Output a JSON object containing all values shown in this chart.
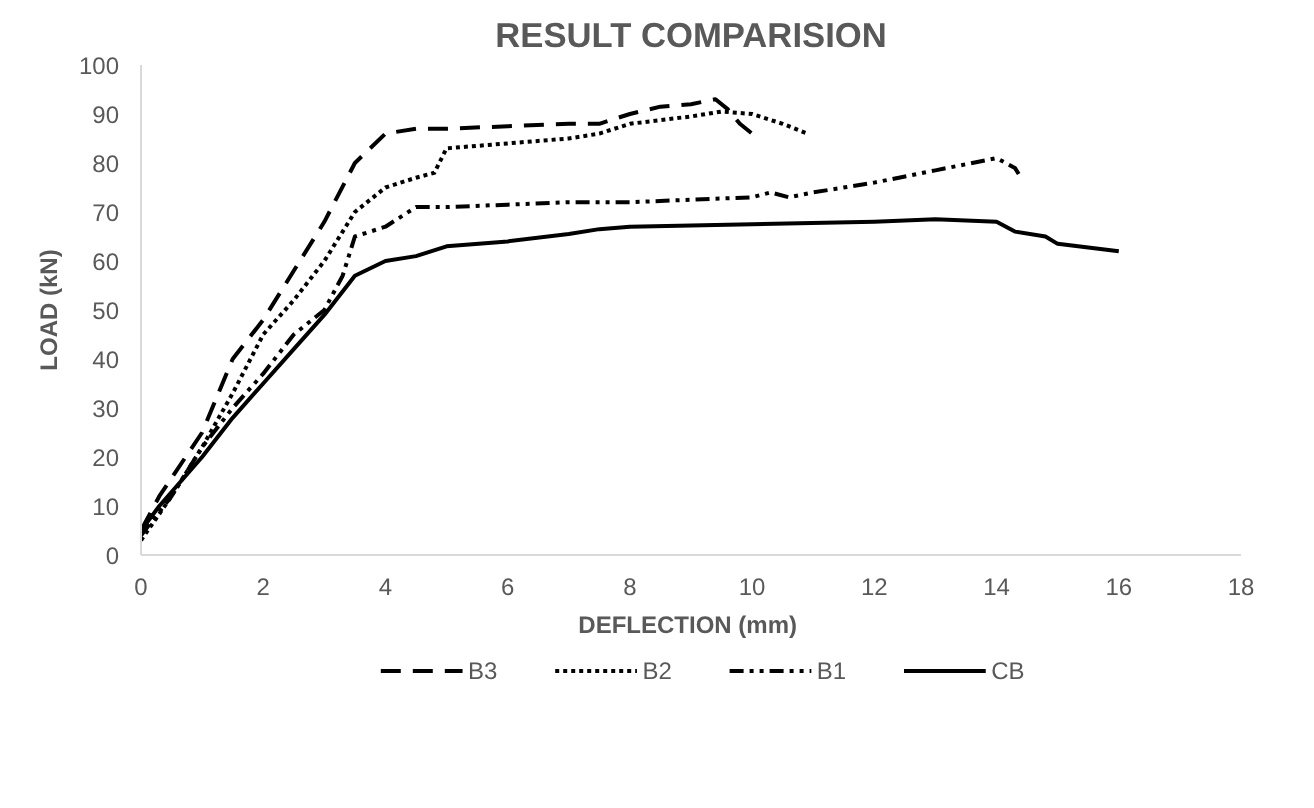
{
  "chart_data": {
    "type": "line",
    "title": "RESULT COMPARISION",
    "xlabel": "DEFLECTION  (mm)",
    "ylabel": "LOAD (kN)",
    "xlim": [
      0,
      18
    ],
    "xticks": [
      0,
      2,
      4,
      6,
      8,
      10,
      12,
      14,
      16,
      18
    ],
    "ylim": [
      0,
      100
    ],
    "yticks": [
      0,
      10,
      20,
      30,
      40,
      50,
      60,
      70,
      80,
      90,
      100
    ],
    "grid": false,
    "legend": "bottom",
    "series": [
      {
        "name": "B3",
        "color": "#000000",
        "line_style": "dashed",
        "x": [
          0,
          0.3,
          1,
          1.5,
          2,
          2.5,
          3,
          3.5,
          4,
          4.5,
          5,
          6,
          7,
          7.5,
          8,
          8.5,
          9,
          9.4,
          9.6,
          9.8,
          10
        ],
        "values": [
          5,
          12,
          25,
          40,
          48,
          58,
          68,
          80,
          86,
          87,
          87,
          87.5,
          88,
          88,
          90,
          91.5,
          92,
          93,
          91,
          88,
          86
        ]
      },
      {
        "name": "B2",
        "color": "#000000",
        "line_style": "dotted",
        "x": [
          0,
          0.5,
          1,
          1.5,
          2,
          2.5,
          3,
          3.5,
          4,
          4.5,
          4.8,
          5,
          6,
          7,
          7.5,
          8,
          9,
          9.5,
          10,
          10.5,
          10.9
        ],
        "values": [
          3,
          12,
          22,
          33,
          45,
          52,
          60,
          70,
          75,
          77,
          78,
          83,
          84,
          85,
          86,
          88,
          89.5,
          90.5,
          90,
          88,
          86
        ]
      },
      {
        "name": "B1",
        "color": "#000000",
        "line_style": "dashdot",
        "x": [
          0,
          0.5,
          1,
          1.5,
          2,
          2.5,
          3,
          3.3,
          3.5,
          4,
          4.5,
          5,
          6,
          7,
          8,
          9,
          10,
          10.3,
          10.6,
          11,
          12,
          13,
          14,
          14.3,
          14.4
        ],
        "values": [
          4,
          12,
          22,
          30,
          37,
          45,
          50,
          57,
          65,
          67,
          71,
          71,
          71.5,
          72,
          72,
          72.5,
          73,
          74,
          73,
          74,
          76,
          78.5,
          81,
          79,
          77
        ]
      },
      {
        "name": "CB",
        "color": "#000000",
        "line_style": "solid",
        "x": [
          0,
          0.3,
          1,
          1.5,
          2,
          2.5,
          3,
          3.5,
          4,
          4.5,
          5,
          6,
          7,
          7.5,
          8,
          10,
          12,
          13,
          14,
          14.3,
          14.8,
          15,
          16
        ],
        "values": [
          5,
          10,
          20,
          28,
          35,
          42,
          49,
          57,
          60,
          61,
          63,
          64,
          65.5,
          66.5,
          67,
          67.5,
          68,
          68.5,
          68,
          66,
          65,
          63.5,
          62
        ]
      }
    ]
  }
}
